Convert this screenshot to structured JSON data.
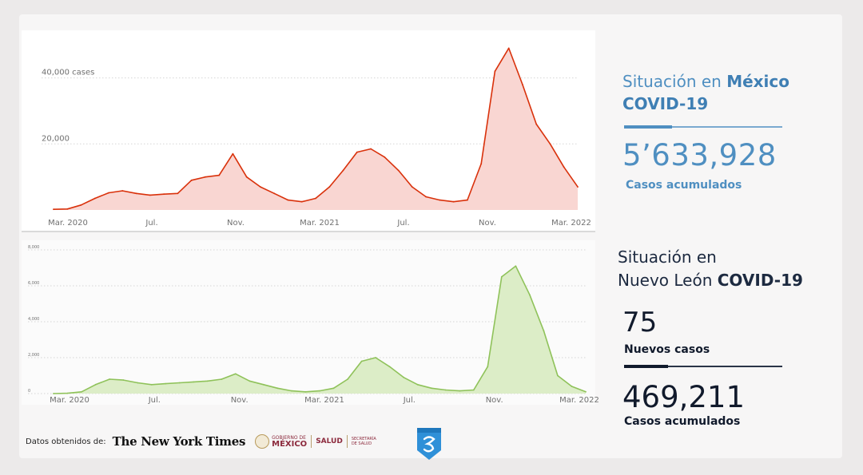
{
  "colors": {
    "mexico_line": "#d9310b",
    "mexico_fill": "#f9d6d2",
    "nl_line": "#8fc25a",
    "nl_fill": "#dcedc7",
    "mexico_text": "#4f8fc1",
    "nl_text": "#111a2c"
  },
  "mexico": {
    "title_prefix": "Situación en ",
    "title_bold": "México",
    "title_line2": "COVID-19",
    "total": "5’633,928",
    "total_label": "Casos acumulados"
  },
  "nuevo_leon": {
    "title_line1": "Situación en",
    "title_line2_prefix": "Nuevo León ",
    "title_bold": "COVID-19",
    "new_cases": "75",
    "new_cases_label": "Nuevos casos",
    "total": "469,211",
    "total_label": "Casos acumulados"
  },
  "footer": {
    "source_label": "Datos obtenidos de:",
    "nyt": "The New York Times",
    "gob_small": "GOBIERNO DE",
    "gob_word": "MÉXICO",
    "salud": "SALUD",
    "salud_small": "SECRETARÍA DE SALUD"
  },
  "icons": {
    "badge": "shield-badge-icon",
    "seal": "government-seal-icon"
  },
  "chart_data": [
    {
      "type": "area",
      "series": [
        {
          "values": [
            200,
            300,
            1500,
            3500,
            5200,
            5800,
            5000,
            4500,
            4800,
            5000,
            9000,
            10000,
            10500,
            17000,
            10000,
            7000,
            5000,
            3000,
            2500,
            3500,
            7000,
            12000,
            17500,
            18500,
            16000,
            12000,
            7000,
            4000,
            3000,
            2500,
            3000,
            14000,
            42000,
            49000,
            38000,
            26000,
            20000,
            13000,
            7000
          ]
        }
      ],
      "x_ticks": [
        "Mar. 2020",
        "Jul.",
        "Nov.",
        "Mar. 2021",
        "Jul.",
        "Nov.",
        "Mar. 2022"
      ],
      "y_ticks": [
        "40,000 cases",
        "20,000"
      ],
      "y_tick_values": [
        40000,
        20000
      ],
      "ylim": [
        0,
        52000
      ],
      "grid": true
    },
    {
      "type": "area",
      "series": [
        {
          "values": [
            0,
            20,
            100,
            500,
            800,
            750,
            600,
            500,
            550,
            600,
            650,
            700,
            800,
            1100,
            700,
            500,
            300,
            150,
            100,
            150,
            300,
            800,
            1800,
            2000,
            1500,
            900,
            500,
            300,
            200,
            150,
            200,
            1500,
            6500,
            7100,
            5500,
            3500,
            1000,
            400,
            100
          ]
        }
      ],
      "x_ticks": [
        "Mar. 2020",
        "Jul.",
        "Nov.",
        "Mar. 2021",
        "Jul.",
        "Nov.",
        "Mar. 2022"
      ],
      "y_ticks": [
        "8,000",
        "6,000",
        "4,000",
        "2,000",
        "0"
      ],
      "y_tick_values": [
        8000,
        6000,
        4000,
        2000,
        0
      ],
      "ylim": [
        0,
        8000
      ],
      "grid": true
    }
  ]
}
